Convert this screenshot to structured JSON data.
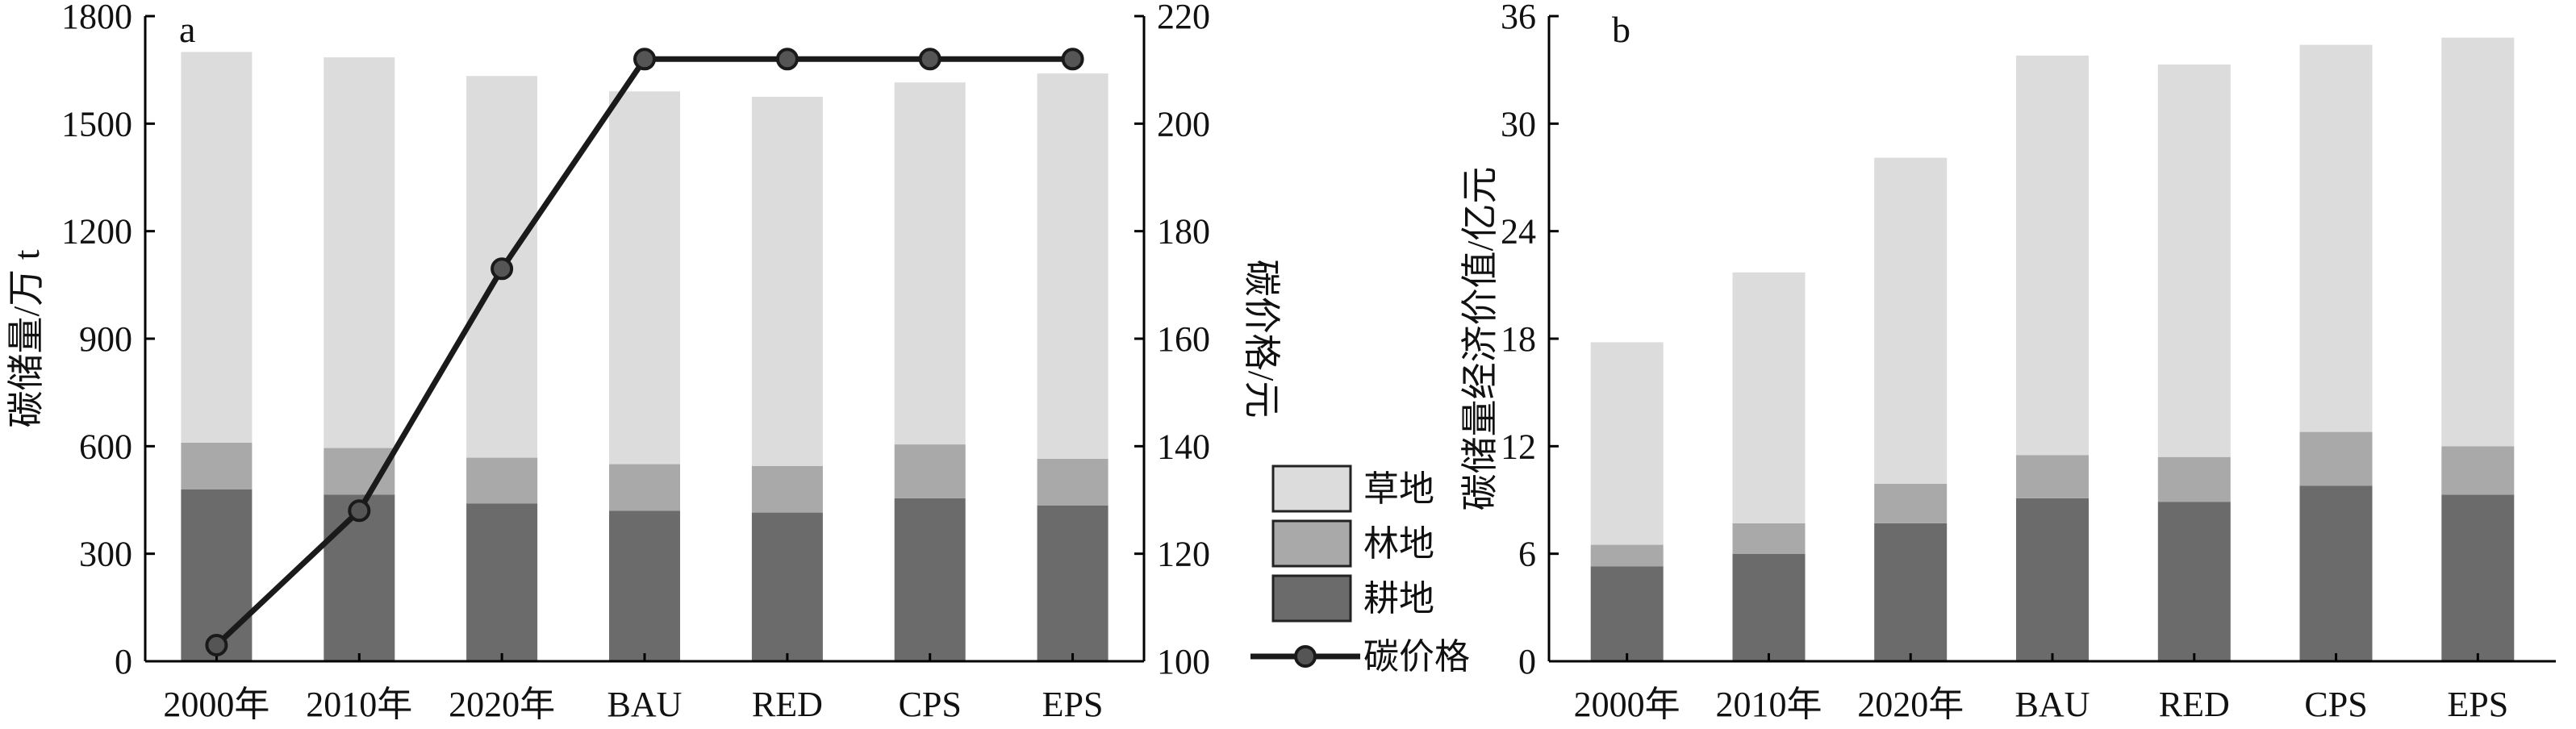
{
  "colors": {
    "grassland": "#dcdcdc",
    "forest": "#a9a9a9",
    "cropland": "#6b6b6b",
    "line": "#1a1a1a",
    "axis": "#000000"
  },
  "chart_data": [
    {
      "type": "bar",
      "panel": "a",
      "stacked": true,
      "categories": [
        "2000年",
        "2010年",
        "2020年",
        "BAU",
        "RED",
        "CPS",
        "EPS"
      ],
      "ylabel": "碳储量/万 t",
      "ylim": [
        0,
        1800
      ],
      "yticks": [
        0,
        300,
        600,
        900,
        1200,
        1500,
        1800
      ],
      "series": [
        {
          "name": "耕地",
          "values": [
            480,
            465,
            440,
            420,
            415,
            455,
            435
          ]
        },
        {
          "name": "林地",
          "values": [
            130,
            130,
            128,
            130,
            130,
            150,
            130
          ]
        },
        {
          "name": "草地",
          "values": [
            1090,
            1090,
            1065,
            1040,
            1030,
            1010,
            1075
          ]
        }
      ],
      "secondary": {
        "type": "line",
        "name": "碳价格",
        "ylabel": "碳价格/元",
        "ylim": [
          100,
          220
        ],
        "yticks": [
          100,
          120,
          140,
          160,
          180,
          200,
          220
        ],
        "values": [
          103,
          128,
          173,
          212,
          212,
          212,
          212
        ]
      },
      "legend": {
        "position": "lower-right",
        "entries": [
          "草地",
          "林地",
          "耕地",
          "碳价格"
        ]
      }
    },
    {
      "type": "bar",
      "panel": "b",
      "stacked": true,
      "categories": [
        "2000年",
        "2010年",
        "2020年",
        "BAU",
        "RED",
        "CPS",
        "EPS"
      ],
      "ylabel": "碳储量经济价值/亿元",
      "ylim": [
        0,
        36
      ],
      "yticks": [
        0,
        6,
        12,
        18,
        24,
        30,
        36
      ],
      "series": [
        {
          "name": "耕地",
          "values": [
            5.3,
            6.0,
            7.7,
            9.1,
            8.9,
            9.8,
            9.3
          ]
        },
        {
          "name": "林地",
          "values": [
            1.2,
            1.7,
            2.2,
            2.4,
            2.5,
            3.0,
            2.7
          ]
        },
        {
          "name": "草地",
          "values": [
            11.3,
            14.0,
            18.2,
            22.3,
            21.9,
            21.6,
            22.8
          ]
        }
      ]
    }
  ]
}
